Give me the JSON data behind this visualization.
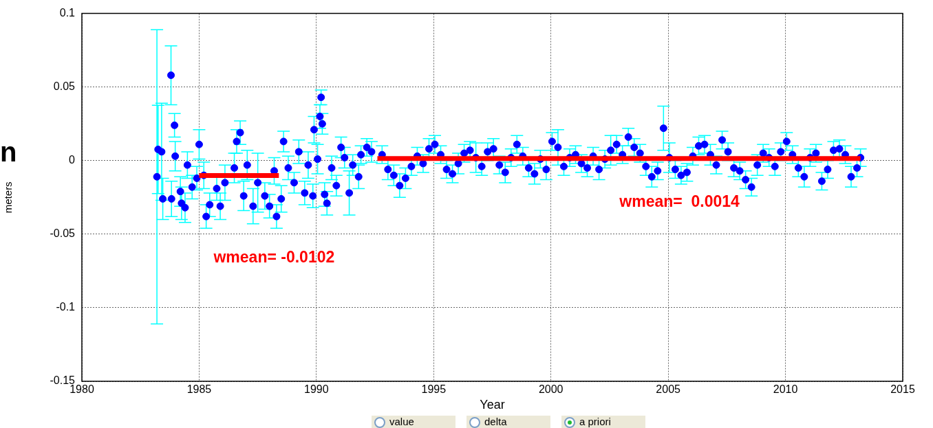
{
  "chart_data": {
    "type": "scatter",
    "xlabel": "Year",
    "ylabel": "meters",
    "xlim": [
      1980,
      2015
    ],
    "ylim": [
      -0.15,
      0.1
    ],
    "xticks": [
      1980,
      1985,
      1990,
      1995,
      2000,
      2005,
      2010,
      2015
    ],
    "yticks": [
      -0.15,
      -0.1,
      -0.05,
      0,
      0.05,
      0.1
    ],
    "grid": true,
    "legend": false,
    "marker": "circle",
    "series": [
      {
        "color": "#0000ff",
        "x": [
          1983.2,
          1983.25,
          1983.4,
          1983.45,
          1983.8,
          1983.82,
          1983.95,
          1983.98,
          1984.2,
          1984.25,
          1984.4,
          1984.5,
          1984.7,
          1984.9,
          1985.0,
          1985.2,
          1985.3,
          1985.45,
          1985.75,
          1985.9,
          1986.1,
          1986.5,
          1986.6,
          1986.75,
          1986.9,
          1987.05,
          1987.3,
          1987.5,
          1987.8,
          1988.0,
          1988.2,
          1988.3,
          1988.5,
          1988.6,
          1988.8,
          1989.05,
          1989.25,
          1989.5,
          1989.65,
          1989.85,
          1989.9,
          1990.05,
          1990.15,
          1990.2,
          1990.25,
          1990.35,
          1990.45,
          1990.65,
          1990.85,
          1991.05,
          1991.2,
          1991.4,
          1991.55,
          1991.8,
          1991.9,
          1992.15,
          1992.35,
          1992.8,
          1993.05,
          1993.3,
          1993.55,
          1993.8,
          1994.05,
          1994.3,
          1994.55,
          1994.8,
          1995.05,
          1995.3,
          1995.55,
          1995.8,
          1996.05,
          1996.3,
          1996.55,
          1996.8,
          1997.05,
          1997.3,
          1997.55,
          1997.8,
          1998.05,
          1998.3,
          1998.55,
          1998.8,
          1999.05,
          1999.3,
          1999.55,
          1999.8,
          2000.05,
          2000.3,
          2000.55,
          2000.8,
          2001.05,
          2001.3,
          2001.55,
          2001.8,
          2002.05,
          2002.3,
          2002.55,
          2002.8,
          2003.05,
          2003.3,
          2003.55,
          2003.8,
          2004.05,
          2004.3,
          2004.55,
          2004.8,
          2005.05,
          2005.3,
          2005.55,
          2005.8,
          2006.05,
          2006.3,
          2006.55,
          2006.8,
          2007.05,
          2007.3,
          2007.55,
          2007.8,
          2008.05,
          2008.3,
          2008.55,
          2008.8,
          2009.05,
          2009.3,
          2009.55,
          2009.8,
          2010.05,
          2010.3,
          2010.55,
          2010.8,
          2011.05,
          2011.3,
          2011.55,
          2011.8,
          2012.05,
          2012.3,
          2012.55,
          2012.8,
          2013.05,
          2013.2
        ],
        "values": [
          -0.011,
          0.0076,
          0.006,
          -0.026,
          0.058,
          -0.026,
          0.024,
          0.003,
          -0.021,
          -0.029,
          -0.032,
          -0.003,
          -0.018,
          -0.012,
          0.011,
          -0.01,
          -0.038,
          -0.03,
          -0.019,
          -0.031,
          -0.015,
          -0.005,
          0.013,
          0.019,
          -0.024,
          -0.003,
          -0.031,
          -0.015,
          -0.024,
          -0.031,
          -0.007,
          -0.038,
          -0.026,
          0.013,
          -0.005,
          -0.015,
          0.006,
          -0.022,
          -0.003,
          -0.024,
          0.021,
          0.001,
          0.03,
          0.043,
          0.025,
          -0.023,
          -0.029,
          -0.005,
          -0.017,
          0.009,
          0.002,
          -0.022,
          -0.003,
          -0.011,
          0.004,
          0.009,
          0.006,
          0.004,
          -0.006,
          -0.01,
          -0.017,
          -0.012,
          -0.004,
          0.003,
          -0.002,
          0.008,
          0.011,
          0.004,
          -0.006,
          -0.009,
          -0.002,
          0.005,
          0.007,
          0.002,
          -0.004,
          0.006,
          0.008,
          -0.003,
          -0.008,
          0.002,
          0.011,
          0.003,
          -0.005,
          -0.009,
          0.001,
          -0.006,
          0.013,
          0.009,
          -0.004,
          0.002,
          0.004,
          -0.002,
          -0.005,
          0.003,
          -0.006,
          0.001,
          0.007,
          0.011,
          0.004,
          0.016,
          0.009,
          0.005,
          -0.004,
          -0.011,
          -0.007,
          0.022,
          0.002,
          -0.006,
          -0.01,
          -0.008,
          0.003,
          0.01,
          0.011,
          0.004,
          -0.003,
          0.014,
          0.006,
          -0.005,
          -0.007,
          -0.013,
          -0.018,
          -0.003,
          0.005,
          0.002,
          -0.004,
          0.006,
          0.013,
          0.004,
          -0.005,
          -0.011,
          0.002,
          0.005,
          -0.014,
          -0.006,
          0.007,
          0.008,
          0.004,
          -0.011,
          -0.005,
          0.002
        ],
        "errors": [
          0.1,
          0.03,
          0.033,
          0.014,
          0.02,
          0.012,
          0.008,
          0.01,
          0.01,
          0.011,
          0.01,
          0.009,
          0.008,
          0.008,
          0.01,
          0.009,
          0.008,
          0.008,
          0.008,
          0.009,
          0.012,
          0.01,
          0.008,
          0.008,
          0.01,
          0.01,
          0.012,
          0.02,
          0.009,
          0.008,
          0.009,
          0.008,
          0.009,
          0.007,
          0.008,
          0.007,
          0.008,
          0.008,
          0.009,
          0.008,
          0.009,
          0.01,
          0.008,
          0.005,
          0.007,
          0.008,
          0.008,
          0.008,
          0.007,
          0.007,
          0.007,
          0.015,
          0.007,
          0.008,
          0.006,
          0.006,
          0.007,
          0.006,
          0.007,
          0.007,
          0.008,
          0.007,
          0.006,
          0.006,
          0.006,
          0.007,
          0.006,
          0.006,
          0.006,
          0.006,
          0.007,
          0.006,
          0.006,
          0.01,
          0.006,
          0.006,
          0.007,
          0.006,
          0.007,
          0.006,
          0.006,
          0.006,
          0.006,
          0.007,
          0.006,
          0.007,
          0.006,
          0.012,
          0.006,
          0.006,
          0.006,
          0.006,
          0.006,
          0.006,
          0.007,
          0.006,
          0.01,
          0.006,
          0.006,
          0.006,
          0.006,
          0.006,
          0.006,
          0.007,
          0.006,
          0.015,
          0.01,
          0.006,
          0.006,
          0.006,
          0.006,
          0.006,
          0.006,
          0.007,
          0.006,
          0.006,
          0.006,
          0.006,
          0.006,
          0.006,
          0.006,
          0.007,
          0.006,
          0.006,
          0.006,
          0.006,
          0.006,
          0.006,
          0.006,
          0.007,
          0.006,
          0.006,
          0.006,
          0.006,
          0.006,
          0.006,
          0.006,
          0.007,
          0.006,
          0.006
        ]
      },
      {
        "type": "line",
        "color": "#ff0000",
        "marker": "none",
        "x": [
          1985.0,
          1988.4
        ],
        "values": [
          -0.0102,
          -0.0102
        ]
      },
      {
        "type": "line",
        "color": "#ff0000",
        "marker": "none",
        "x": [
          1992.6,
          2013.2
        ],
        "values": [
          0.0014,
          0.0014
        ]
      }
    ],
    "annotations": [
      "wmean= -0.0102",
      "wmean=  0.0014",
      "n",
      "value",
      "delta",
      "a priori"
    ]
  }
}
